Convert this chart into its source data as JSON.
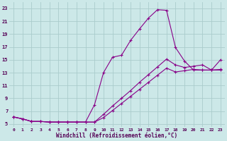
{
  "xlabel": "Windchill (Refroidissement éolien,°C)",
  "background_color": "#cce8e8",
  "grid_color": "#aacccc",
  "line_color": "#880088",
  "xlim": [
    -0.5,
    23.5
  ],
  "ylim": [
    4.5,
    24.0
  ],
  "yticks": [
    5,
    7,
    9,
    11,
    13,
    15,
    17,
    19,
    21,
    23
  ],
  "xticks": [
    0,
    1,
    2,
    3,
    4,
    5,
    6,
    7,
    8,
    9,
    10,
    11,
    12,
    13,
    14,
    15,
    16,
    17,
    18,
    19,
    20,
    21,
    22,
    23
  ],
  "line1_x": [
    0,
    1,
    2,
    3,
    4,
    5,
    6,
    7,
    8,
    9,
    10,
    11,
    12,
    13,
    14,
    15,
    16,
    17,
    18,
    19,
    20,
    21,
    22,
    23
  ],
  "line1_y": [
    6.1,
    5.8,
    5.4,
    5.4,
    5.3,
    5.3,
    5.3,
    5.3,
    5.3,
    8.0,
    13.0,
    15.4,
    15.7,
    18.0,
    19.8,
    21.5,
    22.8,
    22.7,
    16.9,
    14.8,
    13.4,
    13.4,
    13.4,
    15.0
  ],
  "line2_x": [
    0,
    1,
    2,
    3,
    4,
    5,
    6,
    7,
    8,
    9,
    10,
    11,
    12,
    13,
    14,
    15,
    16,
    17,
    18,
    19,
    20,
    21,
    22,
    23
  ],
  "line2_y": [
    6.1,
    5.8,
    5.4,
    5.4,
    5.3,
    5.3,
    5.3,
    5.3,
    5.3,
    5.3,
    6.5,
    7.8,
    9.0,
    10.2,
    11.5,
    12.7,
    13.9,
    15.1,
    14.2,
    13.8,
    14.0,
    14.2,
    13.4,
    13.4
  ],
  "line3_x": [
    0,
    1,
    2,
    3,
    4,
    5,
    6,
    7,
    8,
    9,
    10,
    11,
    12,
    13,
    14,
    15,
    16,
    17,
    18,
    19,
    20,
    21,
    22,
    23
  ],
  "line3_y": [
    6.1,
    5.8,
    5.4,
    5.4,
    5.3,
    5.3,
    5.3,
    5.3,
    5.3,
    5.3,
    6.0,
    7.1,
    8.2,
    9.3,
    10.4,
    11.5,
    12.6,
    13.7,
    13.1,
    13.3,
    13.5,
    13.4,
    13.4,
    13.5
  ]
}
